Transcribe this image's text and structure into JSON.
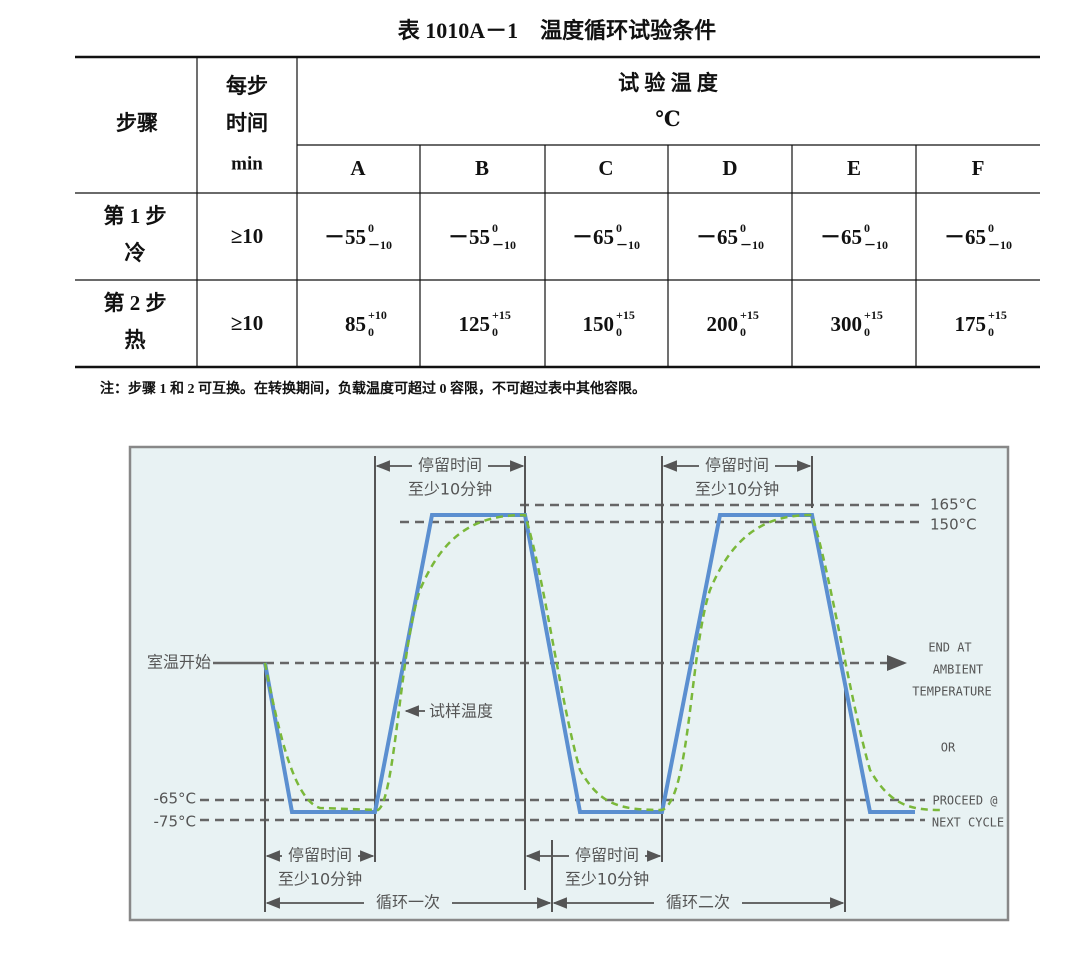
{
  "table": {
    "title": "表 1010A－1　温度循环试验条件",
    "header": {
      "step": "步骤",
      "time": [
        "每步",
        "时间",
        "min"
      ],
      "temp": "试 验 温 度",
      "unit": "℃",
      "columns": [
        "A",
        "B",
        "C",
        "D",
        "E",
        "F"
      ]
    },
    "rows": [
      {
        "step": [
          "第 1 步",
          "冷"
        ],
        "time": "≥10",
        "cells": [
          {
            "base": "－55",
            "upper": "0",
            "lower": "－10"
          },
          {
            "base": "－55",
            "upper": "0",
            "lower": "－10"
          },
          {
            "base": "－65",
            "upper": "0",
            "lower": "－10"
          },
          {
            "base": "－65",
            "upper": "0",
            "lower": "－10"
          },
          {
            "base": "－65",
            "upper": "0",
            "lower": "－10"
          },
          {
            "base": "－65",
            "upper": "0",
            "lower": "－10"
          }
        ]
      },
      {
        "step": [
          "第 2 步",
          "热"
        ],
        "time": "≥10",
        "cells": [
          {
            "base": "85",
            "upper": "+10",
            "lower": "0"
          },
          {
            "base": "125",
            "upper": "+15",
            "lower": "0"
          },
          {
            "base": "150",
            "upper": "+15",
            "lower": "0"
          },
          {
            "base": "200",
            "upper": "+15",
            "lower": "0"
          },
          {
            "base": "300",
            "upper": "+15",
            "lower": "0"
          },
          {
            "base": "175",
            "upper": "+15",
            "lower": "0"
          }
        ]
      }
    ],
    "note": "注：步骤 1 和 2 可互换。在转换期间，负载温度可超过 0 容限，不可超过表中其他容限。"
  },
  "diagram": {
    "start_label": "室温开始",
    "sample_label": "试样温度",
    "temps": [
      "165°C",
      "150°C",
      "-65°C",
      "-75°C"
    ],
    "dwell": [
      {
        "line1": "停留时间",
        "line2": "至少10分钟"
      },
      {
        "line1": "停留时间",
        "line2": "至少10分钟"
      },
      {
        "line1": "停留时间",
        "line2": "至少10分钟"
      },
      {
        "line1": "停留时间",
        "line2": "至少10分钟"
      }
    ],
    "cycles": [
      "循环一次",
      "循环二次"
    ],
    "end_note": [
      "END AT",
      "AMBIENT",
      "TEMPERATURE",
      "OR",
      "PROCEED @",
      "NEXT CYCLE"
    ]
  }
}
